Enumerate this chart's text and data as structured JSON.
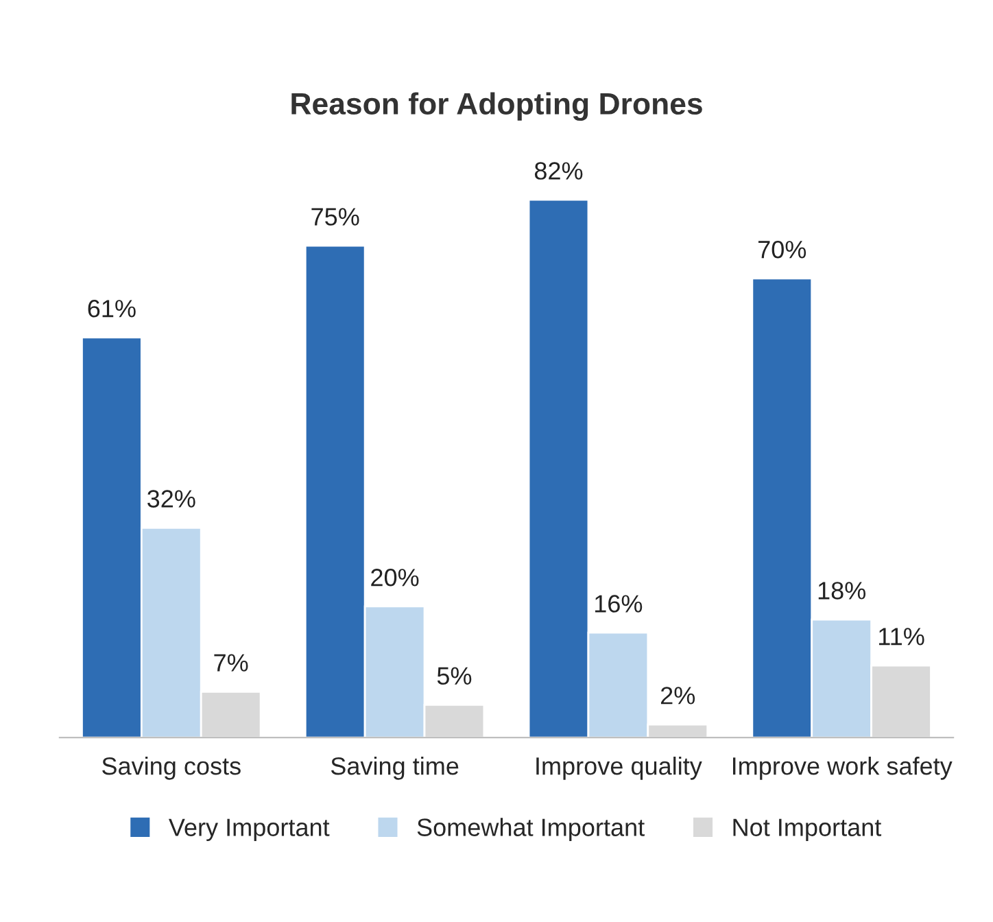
{
  "chart_data": {
    "type": "bar",
    "title": "Reason for Adopting Drones",
    "categories": [
      "Saving costs",
      "Saving time",
      "Improve quality",
      "Improve work safety"
    ],
    "series": [
      {
        "name": "Very Important",
        "color": "#2e6db4",
        "values": [
          61,
          75,
          82,
          70
        ],
        "value_labels": [
          "61%",
          "75%",
          "82%",
          "70%"
        ]
      },
      {
        "name": "Somewhat Important",
        "color": "#bdd7ee",
        "values": [
          32,
          20,
          16,
          18
        ],
        "value_labels": [
          "32%",
          "20%",
          "16%",
          "18%"
        ]
      },
      {
        "name": "Not Important",
        "color": "#d9d9d9",
        "values": [
          7,
          5,
          2,
          11
        ],
        "value_labels": [
          "7%",
          "5%",
          "2%",
          "11%"
        ]
      }
    ],
    "legend": "bottom",
    "grid": false
  }
}
